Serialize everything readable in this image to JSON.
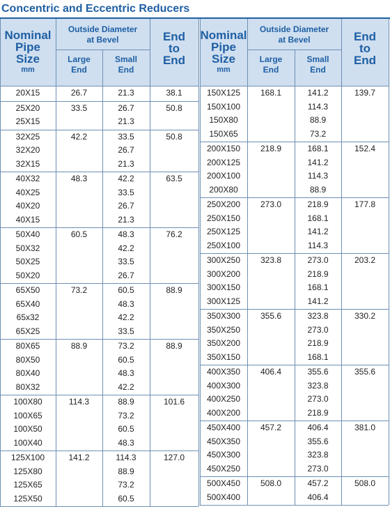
{
  "title": "Concentric and Eccentric Reducers",
  "headers": {
    "nominal_1": "Nominal",
    "nominal_2": "Pipe",
    "nominal_3": "Size",
    "nominal_unit": "mm",
    "od_1": "Outside Diameter",
    "od_2": "at Bevel",
    "large_1": "Large",
    "large_2": "End",
    "small_1": "Small",
    "small_2": "End",
    "ete_1": "End",
    "ete_2": "to",
    "ete_3": "End"
  },
  "left_groups": [
    {
      "rows": [
        "20X15"
      ],
      "large": "26.7",
      "small": [
        "21.3"
      ],
      "ete": "38.1"
    },
    {
      "rows": [
        "25X20",
        "25X15"
      ],
      "large": "33.5",
      "small": [
        "26.7",
        "21.3"
      ],
      "ete": "50.8"
    },
    {
      "rows": [
        "32X25",
        "32X20",
        "32X15"
      ],
      "large": "42.2",
      "small": [
        "33.5",
        "26.7",
        "21.3"
      ],
      "ete": "50.8"
    },
    {
      "rows": [
        "40X32",
        "40X25",
        "40X20",
        "40X15"
      ],
      "large": "48.3",
      "small": [
        "42.2",
        "33.5",
        "26.7",
        "21.3"
      ],
      "ete": "63.5"
    },
    {
      "rows": [
        "50X40",
        "50X32",
        "50X25",
        "50X20"
      ],
      "large": "60.5",
      "small": [
        "48.3",
        "42.2",
        "33.5",
        "26.7"
      ],
      "ete": "76.2"
    },
    {
      "rows": [
        "65X50",
        "65X40",
        "65x32",
        "65X25"
      ],
      "large": "73.2",
      "small": [
        "60.5",
        "48.3",
        "42.2",
        "33.5"
      ],
      "ete": "88.9"
    },
    {
      "rows": [
        "80X65",
        "80X50",
        "80X40",
        "80X32"
      ],
      "large": "88.9",
      "small": [
        "73.2",
        "60.5",
        "48.3",
        "42.2"
      ],
      "ete": "88.9"
    },
    {
      "rows": [
        "100X80",
        "100X65",
        "100X50",
        "100X40"
      ],
      "large": "114.3",
      "small": [
        "88.9",
        "73.2",
        "60.5",
        "48.3"
      ],
      "ete": "101.6"
    },
    {
      "rows": [
        "125X100",
        "125X80",
        "125X65",
        "125X50"
      ],
      "large": "141.2",
      "small": [
        "114.3",
        "88.9",
        "73.2",
        "60.5"
      ],
      "ete": "127.0"
    }
  ],
  "right_groups": [
    {
      "rows": [
        "150X125",
        "150X100",
        "150X80",
        "150X65"
      ],
      "large": "168.1",
      "small": [
        "141.2",
        "114.3",
        "88.9",
        "73.2"
      ],
      "ete": "139.7"
    },
    {
      "rows": [
        "200X150",
        "200X125",
        "200X100",
        "200X80"
      ],
      "large": "218.9",
      "small": [
        "168.1",
        "141.2",
        "114.3",
        "88.9"
      ],
      "ete": "152.4"
    },
    {
      "rows": [
        "250X200",
        "250X150",
        "250X125",
        "250X100"
      ],
      "large": "273.0",
      "small": [
        "218.9",
        "168.1",
        "141.2",
        "114.3"
      ],
      "ete": "177.8"
    },
    {
      "rows": [
        "300X250",
        "300X200",
        "300X150",
        "300X125"
      ],
      "large": "323.8",
      "small": [
        "273.0",
        "218.9",
        "168.1",
        "141.2"
      ],
      "ete": "203.2"
    },
    {
      "rows": [
        "350X300",
        "350X250",
        "350X200",
        "350X150"
      ],
      "large": "355.6",
      "small": [
        "323.8",
        "273.0",
        "218.9",
        "168.1"
      ],
      "ete": "330.2"
    },
    {
      "rows": [
        "400X350",
        "400X300",
        "400X250",
        "400X200"
      ],
      "large": "406.4",
      "small": [
        "355.6",
        "323.8",
        "273.0",
        "218.9"
      ],
      "ete": "355.6"
    },
    {
      "rows": [
        "450X400",
        "450X350",
        "450X300",
        "450X250"
      ],
      "large": "457.2",
      "small": [
        "406.4",
        "355.6",
        "323.8",
        "273.0"
      ],
      "ete": "381.0"
    },
    {
      "rows": [
        "500X450",
        "500X400"
      ],
      "large": "508.0",
      "small": [
        "457.2",
        "406.4"
      ],
      "ete": "508.0"
    }
  ],
  "colors": {
    "title": "#1f5fa3",
    "header_bg": "#cfdff0",
    "header_text": "#1f5fa3",
    "grid": "#6e8fb3"
  }
}
